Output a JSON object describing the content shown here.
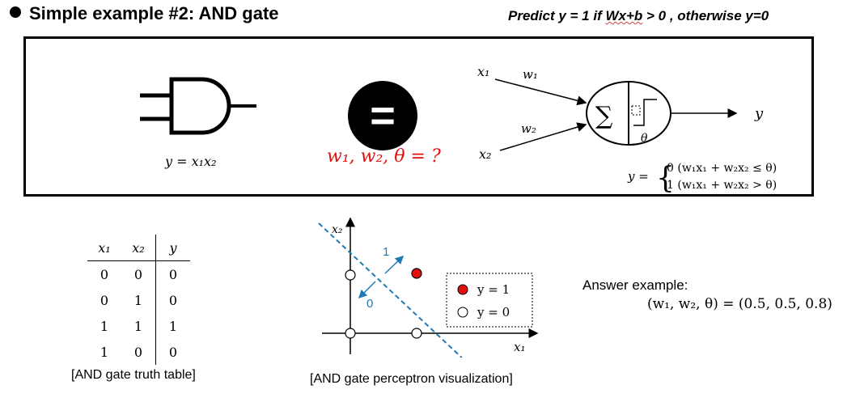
{
  "header": {
    "title": "Simple example #2: AND gate",
    "rule_pre": "Predict y = 1  if ",
    "rule_u": "Wx+b",
    "rule_post": " > 0 , otherwise y=0"
  },
  "gate": {
    "equation": "y = x₁x₂"
  },
  "equals_symbol": "=",
  "question": "w₁, w₂, θ = ?",
  "perceptron": {
    "x1": "x₁",
    "x2": "x₂",
    "w1": "w₁",
    "w2": "w₂",
    "sum": "∑",
    "theta": "θ",
    "output": "y",
    "piecewise_lhs": "y =",
    "case0": "0  (w₁x₁ + w₂x₂ ≤ θ)",
    "case1": "1  (w₁x₁ + w₂x₂ > θ)"
  },
  "truth_table": {
    "headers": [
      "x₁",
      "x₂",
      "y"
    ],
    "rows": [
      [
        "0",
        "0",
        "0"
      ],
      [
        "0",
        "1",
        "0"
      ],
      [
        "1",
        "1",
        "1"
      ],
      [
        "1",
        "0",
        "0"
      ]
    ],
    "caption": "[AND gate truth table]"
  },
  "plot": {
    "x_axis_label": "x₁",
    "y_axis_label": "x₂",
    "arrow_one": "1",
    "arrow_zero": "0",
    "legend": [
      "y = 1",
      "y = 0"
    ],
    "caption": "[AND gate perceptron visualization]",
    "colors": {
      "positive": "#e01010",
      "boundary": "#1f7ab5"
    }
  },
  "answer": {
    "label": "Answer example:",
    "equation": "(w₁, w₂, θ) = (0.5, 0.5, 0.8)"
  }
}
